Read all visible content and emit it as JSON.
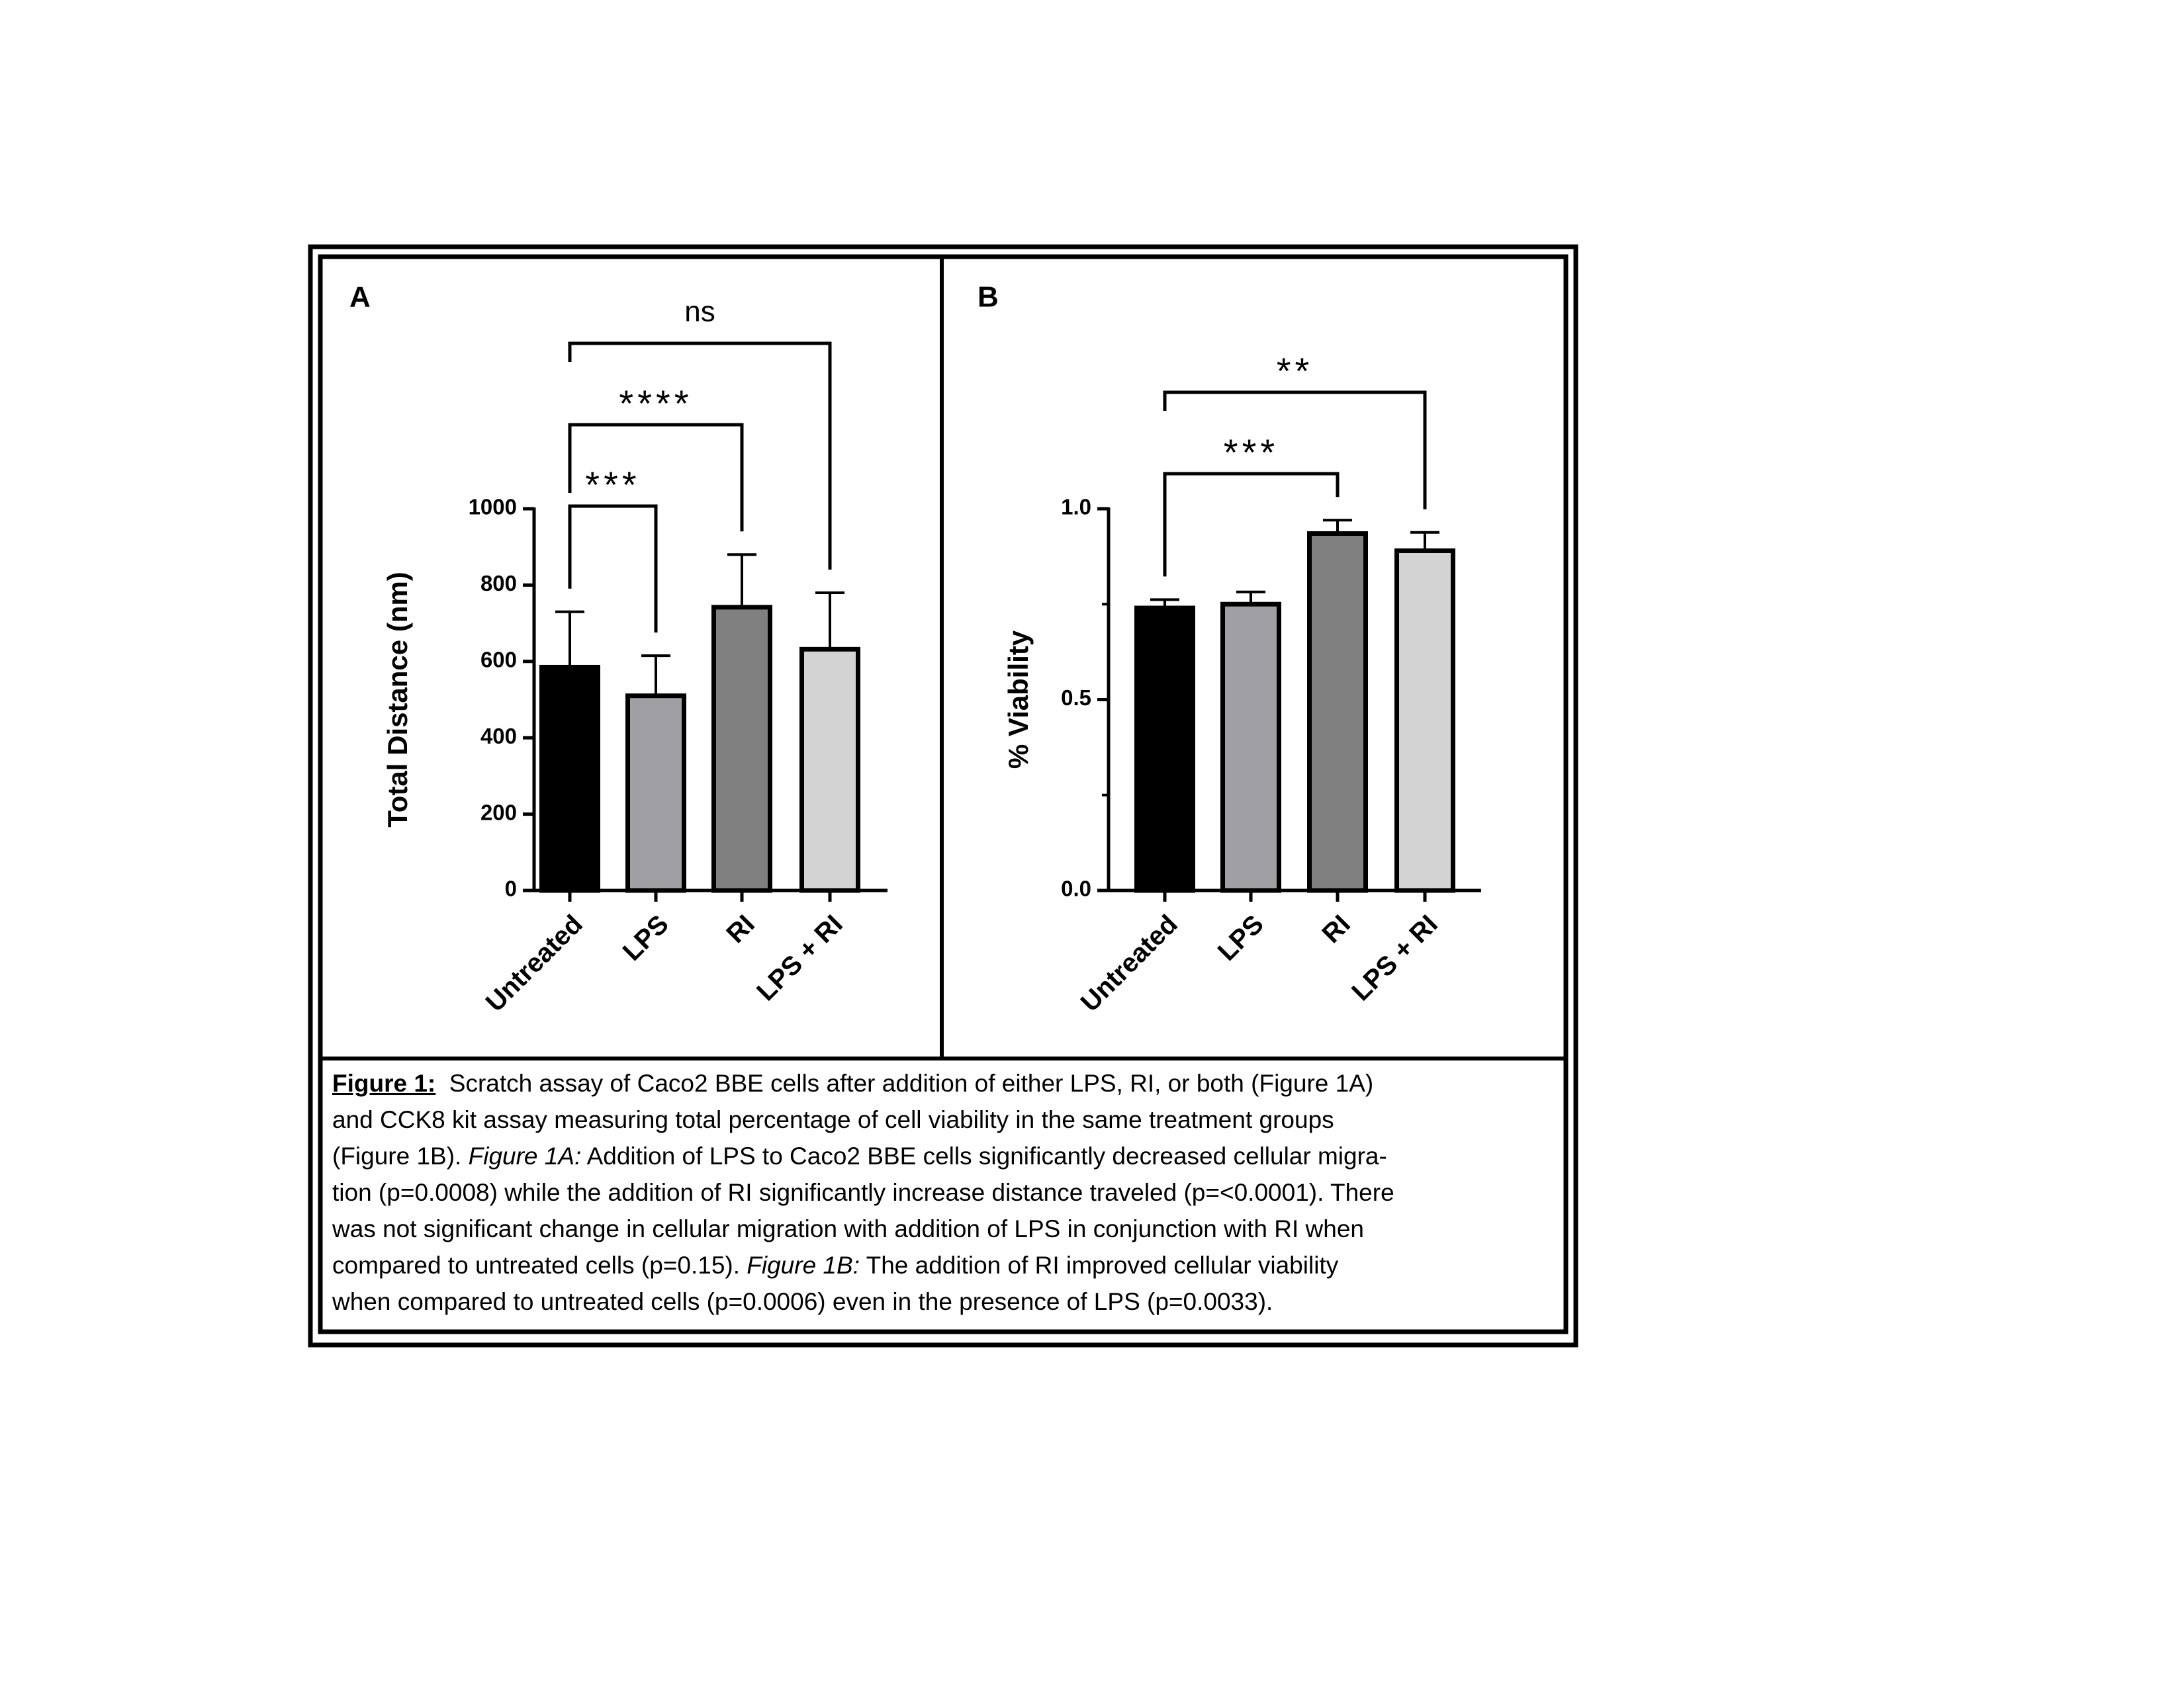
{
  "chart_data": [
    {
      "type": "bar",
      "panel_label": "A",
      "ylabel": "Total Distance  (nm)",
      "categories": [
        "Untreated",
        "LPS",
        "RI",
        "LPS + RI"
      ],
      "values": [
        585,
        510,
        742,
        632
      ],
      "errors": [
        145,
        105,
        138,
        148
      ],
      "colors": [
        "#000000",
        "#a09fa4",
        "#808080",
        "#d3d3d3"
      ],
      "ylim": [
        0,
        1000
      ],
      "yticks": [
        0,
        200,
        400,
        600,
        800,
        1000
      ],
      "annotations": [
        {
          "label": "***",
          "from": "Untreated",
          "to": "LPS"
        },
        {
          "label": "****",
          "from": "Untreated",
          "to": "RI"
        },
        {
          "label": "ns",
          "from": "Untreated",
          "to": "LPS + RI"
        }
      ]
    },
    {
      "type": "bar",
      "panel_label": "B",
      "ylabel": "% Viability",
      "categories": [
        "Untreated",
        "LPS",
        "RI",
        "LPS + RI"
      ],
      "values": [
        0.74,
        0.75,
        0.935,
        0.89
      ],
      "errors": [
        0.022,
        0.032,
        0.035,
        0.048
      ],
      "colors": [
        "#000000",
        "#a09fa4",
        "#808080",
        "#d3d3d3"
      ],
      "ylim": [
        0,
        1.0
      ],
      "yticks": [
        {
          "value": 0,
          "label": "0.0"
        },
        0.5,
        {
          "value": 1,
          "label": "1.0"
        }
      ],
      "minor_yticks": [
        0.25,
        0.75
      ],
      "annotations": [
        {
          "label": "***",
          "from": "Untreated",
          "to": "RI"
        },
        {
          "label": "**",
          "from": "Untreated",
          "to": "LPS + RI"
        }
      ]
    }
  ],
  "caption": {
    "label": "Figure 1:",
    "text": [
      "  Scratch assay of Caco2 BBE cells after addition of either LPS, RI, or both (Figure 1A)",
      "and CCK8 kit assay measuring total percentage of cell viability in the same treatment groups",
      "(Figure 1B). ",
      "Figure 1A:",
      " Addition of LPS to Caco2 BBE cells significantly decreased cellular migra-",
      "tion (p=0.0008) while the addition of RI significantly increase distance traveled (p=<0.0001). There",
      "was not significant change in cellular migration with addition of LPS in conjunction with RI when",
      "compared to untreated cells (p=0.15). ",
      "Figure 1B:",
      " The addition of RI improved cellular viability",
      "when compared to untreated cells (p=0.0006) even in the presence of LPS (p=0.0033)."
    ]
  }
}
